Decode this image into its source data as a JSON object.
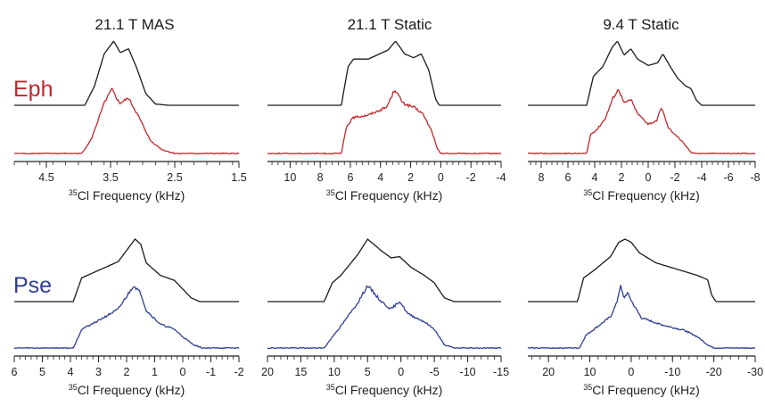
{
  "figure": {
    "row_labels": [
      {
        "text": "Eph",
        "color": "#c0272d"
      },
      {
        "text": "Pse",
        "color": "#2e3f92"
      }
    ],
    "column_titles": [
      "21.1 T MAS",
      "21.1 T Static",
      "9.4 T Static"
    ],
    "trace_colors": {
      "simulated": "#1a1a1a",
      "experimental_eph": "#c0272d",
      "experimental_pse": "#2e3f92"
    }
  },
  "chart_data": [
    {
      "type": "line",
      "row": "Eph",
      "title": "21.1 T MAS",
      "xlabel_sup": "35",
      "xlabel": "Cl Frequency (kHz)",
      "x_axis_reversed": true,
      "xlim": [
        5.0,
        1.5
      ],
      "xticks": [
        4.5,
        3.5,
        2.5,
        1.5
      ],
      "xtick_labels": [
        "4.5",
        "3.5",
        "2.5",
        "1.5"
      ],
      "series": [
        {
          "role": "simulated",
          "color": "#1a1a1a",
          "anchors": [
            [
              5.0,
              0
            ],
            [
              3.9,
              0
            ],
            [
              3.75,
              0.3
            ],
            [
              3.6,
              0.8
            ],
            [
              3.45,
              1.0
            ],
            [
              3.35,
              0.82
            ],
            [
              3.22,
              0.88
            ],
            [
              3.1,
              0.6
            ],
            [
              2.95,
              0.18
            ],
            [
              2.8,
              0.02
            ],
            [
              2.6,
              0
            ],
            [
              1.5,
              0
            ]
          ]
        },
        {
          "role": "experimental",
          "color": "#c0272d",
          "anchors": [
            [
              5.0,
              0
            ],
            [
              3.95,
              0
            ],
            [
              3.8,
              0.22
            ],
            [
              3.6,
              0.78
            ],
            [
              3.48,
              1.0
            ],
            [
              3.36,
              0.78
            ],
            [
              3.22,
              0.86
            ],
            [
              3.05,
              0.55
            ],
            [
              2.88,
              0.2
            ],
            [
              2.7,
              0.06
            ],
            [
              2.5,
              0
            ],
            [
              1.5,
              0
            ]
          ]
        }
      ]
    },
    {
      "type": "line",
      "row": "Eph",
      "title": "21.1 T Static",
      "xlabel_sup": "35",
      "xlabel": "Cl Frequency (kHz)",
      "x_axis_reversed": true,
      "xlim": [
        11.5,
        -4.0
      ],
      "xticks": [
        10,
        8,
        6,
        4,
        2,
        0,
        -2,
        -4
      ],
      "xtick_labels": [
        "10",
        "8",
        "6",
        "4",
        "2",
        "0",
        "-2",
        "-4"
      ],
      "series": [
        {
          "role": "simulated",
          "color": "#1a1a1a",
          "anchors": [
            [
              11.5,
              0
            ],
            [
              6.6,
              0
            ],
            [
              6.15,
              0.6
            ],
            [
              5.8,
              0.72
            ],
            [
              4.8,
              0.72
            ],
            [
              3.5,
              0.86
            ],
            [
              3.0,
              1.0
            ],
            [
              2.4,
              0.8
            ],
            [
              1.8,
              0.74
            ],
            [
              1.3,
              0.8
            ],
            [
              0.8,
              0.55
            ],
            [
              0.35,
              0.1
            ],
            [
              0.1,
              0
            ],
            [
              -4.0,
              0
            ]
          ]
        },
        {
          "role": "experimental",
          "color": "#c0272d",
          "anchors": [
            [
              11.5,
              0
            ],
            [
              6.6,
              0
            ],
            [
              6.25,
              0.42
            ],
            [
              5.8,
              0.56
            ],
            [
              4.8,
              0.6
            ],
            [
              3.6,
              0.72
            ],
            [
              3.05,
              1.0
            ],
            [
              2.5,
              0.78
            ],
            [
              1.8,
              0.72
            ],
            [
              1.2,
              0.62
            ],
            [
              0.6,
              0.35
            ],
            [
              0.25,
              0.08
            ],
            [
              0,
              0
            ],
            [
              -4.0,
              0
            ]
          ]
        }
      ]
    },
    {
      "type": "line",
      "row": "Eph",
      "title": "9.4 T Static",
      "xlabel_sup": "35",
      "xlabel": "Cl Frequency (kHz)",
      "x_axis_reversed": true,
      "xlim": [
        9.0,
        -8.0
      ],
      "xticks": [
        8,
        6,
        4,
        2,
        0,
        -2,
        -4,
        -6,
        -8
      ],
      "xtick_labels": [
        "8",
        "6",
        "4",
        "2",
        "0",
        "-2",
        "-4",
        "-6",
        "-8"
      ],
      "series": [
        {
          "role": "simulated",
          "color": "#1a1a1a",
          "anchors": [
            [
              9.0,
              0
            ],
            [
              4.6,
              0
            ],
            [
              4.1,
              0.45
            ],
            [
              3.4,
              0.6
            ],
            [
              2.7,
              0.9
            ],
            [
              2.3,
              1.0
            ],
            [
              1.8,
              0.78
            ],
            [
              1.3,
              0.88
            ],
            [
              0.8,
              0.72
            ],
            [
              0,
              0.62
            ],
            [
              -0.7,
              0.66
            ],
            [
              -1.1,
              0.8
            ],
            [
              -1.6,
              0.62
            ],
            [
              -2.2,
              0.42
            ],
            [
              -2.8,
              0.3
            ],
            [
              -3.2,
              0.26
            ],
            [
              -3.6,
              0.08
            ],
            [
              -4.0,
              0
            ],
            [
              -8.0,
              0
            ]
          ]
        },
        {
          "role": "experimental",
          "color": "#c0272d",
          "anchors": [
            [
              9.0,
              0
            ],
            [
              4.6,
              0
            ],
            [
              4.3,
              0.3
            ],
            [
              3.8,
              0.38
            ],
            [
              3.2,
              0.55
            ],
            [
              2.6,
              0.88
            ],
            [
              2.2,
              1.0
            ],
            [
              1.8,
              0.78
            ],
            [
              1.3,
              0.84
            ],
            [
              0.8,
              0.62
            ],
            [
              0,
              0.46
            ],
            [
              -0.6,
              0.5
            ],
            [
              -1.0,
              0.72
            ],
            [
              -1.5,
              0.4
            ],
            [
              -2.2,
              0.26
            ],
            [
              -2.8,
              0.12
            ],
            [
              -3.2,
              0.02
            ],
            [
              -3.6,
              0
            ],
            [
              -8.0,
              0
            ]
          ]
        }
      ]
    },
    {
      "type": "line",
      "row": "Pse",
      "title": "",
      "xlabel_sup": "35",
      "xlabel": "Cl Frequency (kHz)",
      "x_axis_reversed": true,
      "xlim": [
        6.0,
        -2.0
      ],
      "xticks": [
        6,
        5,
        4,
        3,
        2,
        1,
        0,
        -1,
        -2
      ],
      "xtick_labels": [
        "6",
        "5",
        "4",
        "3",
        "2",
        "1",
        "0",
        "-1",
        "-2"
      ],
      "series": [
        {
          "role": "simulated",
          "color": "#1a1a1a",
          "anchors": [
            [
              6.0,
              0
            ],
            [
              3.9,
              0
            ],
            [
              3.6,
              0.38
            ],
            [
              3.0,
              0.5
            ],
            [
              2.3,
              0.64
            ],
            [
              1.9,
              0.88
            ],
            [
              1.7,
              1.0
            ],
            [
              1.5,
              0.92
            ],
            [
              1.3,
              0.62
            ],
            [
              0.8,
              0.42
            ],
            [
              0.3,
              0.34
            ],
            [
              0,
              0.2
            ],
            [
              -0.3,
              0.06
            ],
            [
              -0.6,
              0
            ],
            [
              -2.0,
              0
            ]
          ]
        },
        {
          "role": "experimental",
          "color": "#2e3f92",
          "anchors": [
            [
              6.0,
              0
            ],
            [
              3.9,
              0
            ],
            [
              3.6,
              0.3
            ],
            [
              3.0,
              0.44
            ],
            [
              2.3,
              0.62
            ],
            [
              1.95,
              0.86
            ],
            [
              1.75,
              1.0
            ],
            [
              1.5,
              0.88
            ],
            [
              1.3,
              0.6
            ],
            [
              0.8,
              0.38
            ],
            [
              0.3,
              0.3
            ],
            [
              0,
              0.18
            ],
            [
              -0.35,
              0.06
            ],
            [
              -0.7,
              0
            ],
            [
              -2.0,
              0
            ]
          ]
        }
      ]
    },
    {
      "type": "line",
      "row": "Pse",
      "title": "",
      "xlabel_sup": "35",
      "xlabel": "Cl Frequency (kHz)",
      "x_axis_reversed": true,
      "xlim": [
        20.0,
        -15.0
      ],
      "xticks": [
        20,
        15,
        10,
        5,
        0,
        -5,
        -10,
        -15
      ],
      "xtick_labels": [
        "20",
        "15",
        "10",
        "5",
        "0",
        "-5",
        "-10",
        "-15"
      ],
      "series": [
        {
          "role": "simulated",
          "color": "#1a1a1a",
          "anchors": [
            [
              20.0,
              0
            ],
            [
              11.5,
              0
            ],
            [
              10.3,
              0.3
            ],
            [
              9.0,
              0.42
            ],
            [
              6.5,
              0.75
            ],
            [
              5.0,
              1.0
            ],
            [
              3.0,
              0.82
            ],
            [
              1.5,
              0.7
            ],
            [
              0.2,
              0.72
            ],
            [
              -1.5,
              0.55
            ],
            [
              -3.5,
              0.42
            ],
            [
              -5.0,
              0.3
            ],
            [
              -6.5,
              0.06
            ],
            [
              -8.0,
              0
            ],
            [
              -15.0,
              0
            ]
          ]
        },
        {
          "role": "experimental",
          "color": "#2e3f92",
          "anchors": [
            [
              20.0,
              0
            ],
            [
              11.5,
              0
            ],
            [
              10.0,
              0.22
            ],
            [
              9.0,
              0.35
            ],
            [
              6.5,
              0.72
            ],
            [
              5.0,
              1.0
            ],
            [
              3.0,
              0.75
            ],
            [
              1.5,
              0.62
            ],
            [
              0.2,
              0.75
            ],
            [
              -1.0,
              0.55
            ],
            [
              -3.5,
              0.42
            ],
            [
              -5.0,
              0.3
            ],
            [
              -6.5,
              0.05
            ],
            [
              -8.0,
              0
            ],
            [
              -15.0,
              0
            ]
          ]
        }
      ]
    },
    {
      "type": "line",
      "row": "Pse",
      "title": "",
      "xlabel_sup": "35",
      "xlabel": "Cl Frequency (kHz)",
      "x_axis_reversed": true,
      "xlim": [
        25.0,
        -30.0
      ],
      "xticks": [
        20,
        10,
        0,
        -10,
        -20,
        -30
      ],
      "xtick_labels": [
        "20",
        "10",
        "0",
        "-10",
        "-20",
        "-30"
      ],
      "series": [
        {
          "role": "simulated",
          "color": "#1a1a1a",
          "anchors": [
            [
              25.0,
              0
            ],
            [
              13.0,
              0
            ],
            [
              11.5,
              0.38
            ],
            [
              9.0,
              0.5
            ],
            [
              5.0,
              0.72
            ],
            [
              3.0,
              0.95
            ],
            [
              1.5,
              1.0
            ],
            [
              0.0,
              0.95
            ],
            [
              -2.0,
              0.78
            ],
            [
              -6.0,
              0.62
            ],
            [
              -12.0,
              0.5
            ],
            [
              -16.0,
              0.42
            ],
            [
              -18.5,
              0.35
            ],
            [
              -19.5,
              0.1
            ],
            [
              -20.5,
              0
            ],
            [
              -30.0,
              0
            ]
          ]
        },
        {
          "role": "experimental",
          "color": "#2e3f92",
          "anchors": [
            [
              25.0,
              0
            ],
            [
              12.5,
              0
            ],
            [
              11.0,
              0.2
            ],
            [
              9.0,
              0.3
            ],
            [
              5.0,
              0.5
            ],
            [
              3.5,
              0.72
            ],
            [
              2.6,
              1.0
            ],
            [
              1.8,
              0.8
            ],
            [
              0.9,
              0.88
            ],
            [
              -0.5,
              0.7
            ],
            [
              -2.5,
              0.48
            ],
            [
              -8.0,
              0.36
            ],
            [
              -13.0,
              0.28
            ],
            [
              -16.0,
              0.18
            ],
            [
              -18.5,
              0.05
            ],
            [
              -20.0,
              0
            ],
            [
              -30.0,
              0
            ]
          ]
        }
      ]
    }
  ]
}
